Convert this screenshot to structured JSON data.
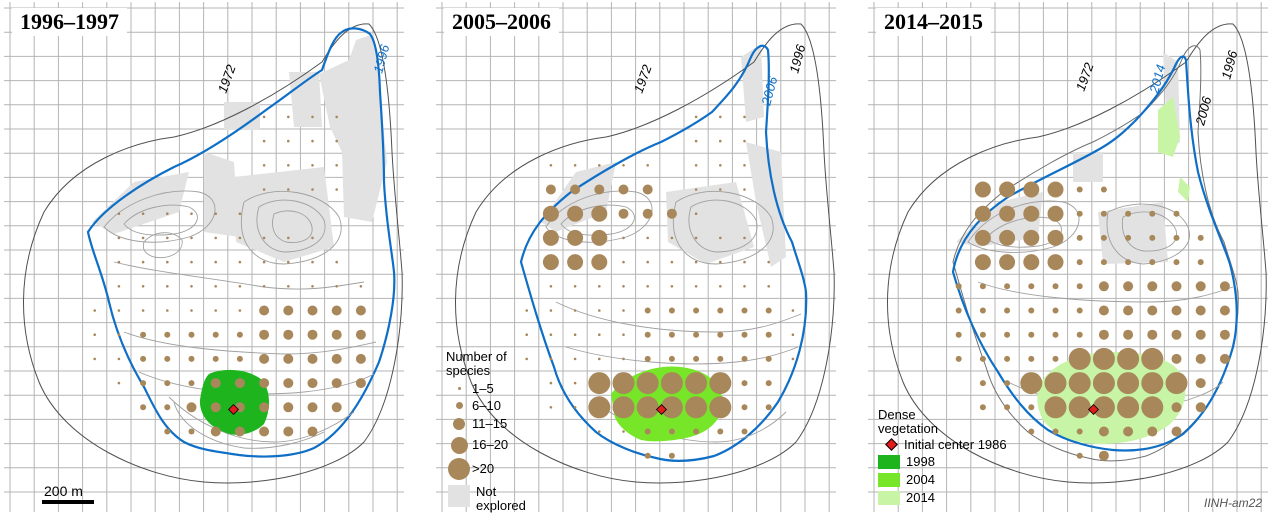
{
  "panels": [
    {
      "title": "1996–1997",
      "labels": {
        "contour_1972": "1972",
        "contour_current": "1996"
      }
    },
    {
      "title": "2005–2006",
      "labels": {
        "contour_1972": "1972",
        "contour_current": "2006",
        "contour_1996": "1996"
      }
    },
    {
      "title": "2014–2015",
      "labels": {
        "contour_1972": "1972",
        "contour_current": "2014",
        "contour_2006": "2006",
        "contour_1996": "1996"
      }
    }
  ],
  "scale_bar": {
    "label": "200 m"
  },
  "species_legend": {
    "title": "Number of species",
    "title_line1": "Number of",
    "title_line2": "species",
    "classes": [
      "1–5",
      "6–10",
      "11–15",
      "16–20",
      ">20"
    ],
    "not_explored": "Not explored",
    "not_explored_line1": "Not",
    "not_explored_line2": "explored"
  },
  "vegetation_legend": {
    "title": "Dense vegetation",
    "title_line1": "Dense",
    "title_line2": "vegetation",
    "center_label": "Initial center 1986",
    "years": [
      "1998",
      "2004",
      "2014"
    ]
  },
  "colors": {
    "grid": "#b4b4b4",
    "outline_current": "#0f6fc6",
    "species_dot": "#a8885a",
    "not_explored": "#e2e2e2",
    "veg_1998": "#1eb41e",
    "veg_2004": "#78e628",
    "veg_2014": "#c8f5a5",
    "center_marker": "#e01c1c"
  },
  "credit": "IINH-am22"
}
